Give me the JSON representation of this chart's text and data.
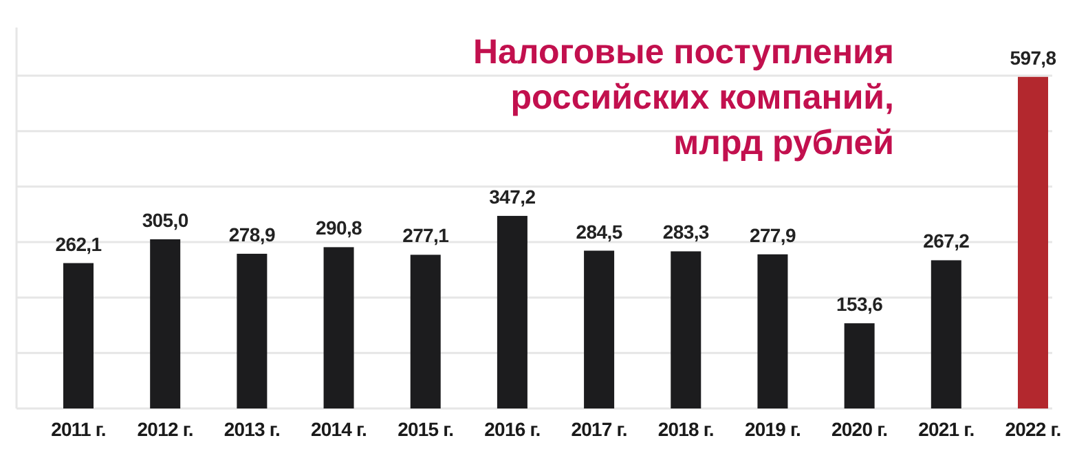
{
  "chart_data": {
    "type": "bar",
    "title": "Налоговые поступления\nроссийских компаний,\nмлрд рублей",
    "categories": [
      "2011 г.",
      "2012 г.",
      "2013 г.",
      "2014 г.",
      "2015 г.",
      "2016 г.",
      "2017 г.",
      "2018 г.",
      "2019 г.",
      "2020 г.",
      "2021 г.",
      "2022 г."
    ],
    "values": [
      262.1,
      305.0,
      278.9,
      290.8,
      277.1,
      347.2,
      284.5,
      283.3,
      277.9,
      153.6,
      267.2,
      597.8
    ],
    "value_labels": [
      "262,1",
      "305,0",
      "278,9",
      "290,8",
      "277,1",
      "347,2",
      "284,5",
      "283,3",
      "277,9",
      "153,6",
      "267,2",
      "597,8"
    ],
    "colors": [
      "#1c1c1e",
      "#1c1c1e",
      "#1c1c1e",
      "#1c1c1e",
      "#1c1c1e",
      "#1c1c1e",
      "#1c1c1e",
      "#1c1c1e",
      "#1c1c1e",
      "#1c1c1e",
      "#1c1c1e",
      "#b3282e"
    ],
    "ylim": [
      0,
      600
    ],
    "yticks": [
      {
        "value": 0,
        "label": null
      },
      {
        "value": 100,
        "label": null
      },
      {
        "value": 200,
        "label": null
      },
      {
        "value": 300,
        "label": null
      },
      {
        "value": 400,
        "label": null
      },
      {
        "value": 500,
        "label": null
      },
      {
        "value": 600,
        "label": null
      }
    ],
    "grid": "y",
    "tick_labels": "x"
  }
}
